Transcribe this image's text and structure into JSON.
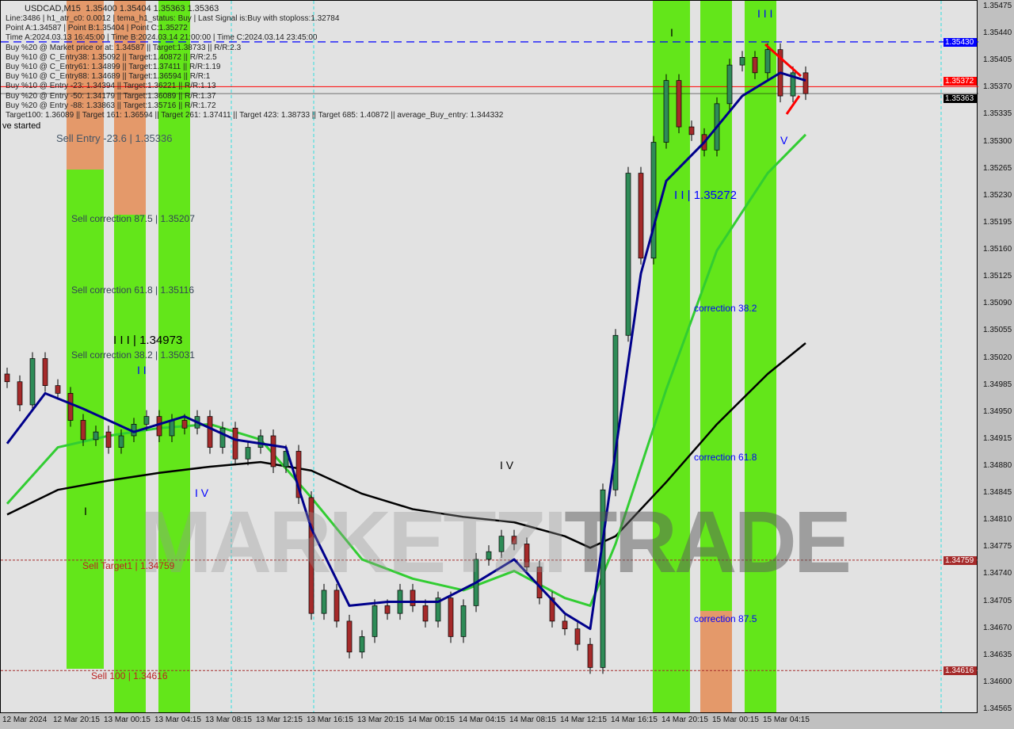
{
  "header": {
    "symbol": "USDCAD,M15",
    "ohlc": "1.35400 1.35404 1.35363 1.35363",
    "lines": [
      "Line:3486 | h1_atr_c0: 0.0012 | tema_h1_status: Buy | Last Signal is:Buy with stoploss:1.32784",
      "Point A:1.34587 | Point B:1.35404 | Point C:1.35272",
      "Time A:2024.03.13 16:45:00 | Time B:2024.03.14 21:00:00 | Time C:2024.03.14 23:45:00",
      "Buy %20 @ Market price or at: 1.34587 || Target:1.38733 || R/R:2.3",
      "Buy %10 @ C_Entry38: 1.35092 || Target:1.40872 || R/R:2.5",
      "Buy %10 @ C_Entry61: 1.34899 || Target:1.37411 || R/R:1.19",
      "Buy %10 @ C_Entry88: 1.34689 || Target:1.36594 || R/R:1",
      "Buy %10 @ Entry -23: 1.34394 || Target:1.36221 || R/R:1.13",
      "Buy %20 @ Entry -50: 1.34179 || Target:1.36089 || R/R:1.37",
      "Buy %20 @ Entry -88: 1.33863 || Target:1.35716 || R/R:1.72",
      "Target100: 1.36089 || Target 161: 1.36594 || Target 261: 1.37411 || Target 423: 1.38733 || Target 685: 1.40872 || average_Buy_entry: 1.344332",
      "ve started"
    ]
  },
  "labels": {
    "sell_entry": "Sell Entry -23.6 | 1.35336",
    "sell_corr_875": "Sell correction 87.5 | 1.35207",
    "sell_corr_618": "Sell correction 61.8 | 1.35116",
    "sell_corr_382": "Sell correction 38.2 | 1.35031",
    "wave_iii_left": "I I I | 1.34973",
    "sell_target1": "Sell Target1 | 1.34759",
    "sell_100": "Sell 100 | 1.34616",
    "wave_ii_right": "I I | 1.35272",
    "corr_382": "correction 38.2",
    "corr_618": "correction 61.8",
    "corr_875": "correction 87.5",
    "wave_iv": "I V",
    "wave_v": "V",
    "wave_i": "I",
    "wave_iii": "I I I",
    "wave_ii_left": "I I",
    "wave_iv_left": "I V",
    "wave_i_left": "I"
  },
  "watermark": "MARKETZI TRADE",
  "chart_data": {
    "type": "candlestick",
    "symbol": "USDCAD",
    "timeframe": "M15",
    "ylim": [
      1.34565,
      1.35475
    ],
    "y_ticks": [
      1.35475,
      1.3544,
      1.35405,
      1.3537,
      1.35335,
      1.353,
      1.35265,
      1.3523,
      1.35195,
      1.3516,
      1.35125,
      1.3509,
      1.35055,
      1.3502,
      1.34985,
      1.3495,
      1.34915,
      1.3488,
      1.34845,
      1.3481,
      1.34775,
      1.3474,
      1.34705,
      1.3467,
      1.34635,
      1.346,
      1.34565
    ],
    "y_tick_labels": [
      "1.35475",
      "1.35440",
      "1.35405",
      "1.35370",
      "1.35335",
      "1.35300",
      "1.35265",
      "1.35230",
      "1.35195",
      "1.35160",
      "1.35125",
      "1.35090",
      "1.35055",
      "1.35020",
      "1.34985",
      "1.34950",
      "1.34915",
      "1.34880",
      "1.34845",
      "1.34810",
      "1.34775",
      "1.34740",
      "1.34705",
      "1.34670",
      "1.34635",
      "1.34600",
      "1.34565"
    ],
    "x_tick_labels": [
      "12 Mar 2024",
      "12 Mar 20:15",
      "13 Mar 00:15",
      "13 Mar 04:15",
      "13 Mar 08:15",
      "13 Mar 12:15",
      "13 Mar 16:15",
      "13 Mar 20:15",
      "14 Mar 00:15",
      "14 Mar 04:15",
      "14 Mar 08:15",
      "14 Mar 12:15",
      "14 Mar 16:15",
      "14 Mar 20:15",
      "15 Mar 00:15",
      "15 Mar 04:15"
    ],
    "close": [
      1.3499,
      1.3496,
      1.3502,
      1.34985,
      1.34975,
      1.3494,
      1.34915,
      1.34925,
      1.34905,
      1.3492,
      1.34935,
      1.34945,
      1.3492,
      1.3494,
      1.3493,
      1.34945,
      1.34905,
      1.3493,
      1.3489,
      1.34905,
      1.3492,
      1.3488,
      1.349,
      1.3484,
      1.3469,
      1.3472,
      1.3468,
      1.3464,
      1.3466,
      1.347,
      1.3469,
      1.3472,
      1.347,
      1.3468,
      1.3471,
      1.3466,
      1.347,
      1.3476,
      1.3477,
      1.3479,
      1.3478,
      1.3475,
      1.3471,
      1.3468,
      1.3467,
      1.3465,
      1.3462,
      1.3485,
      1.3505,
      1.3526,
      1.3515,
      1.353,
      1.3538,
      1.3532,
      1.3531,
      1.3529,
      1.3535,
      1.354,
      1.3541,
      1.3539,
      1.3542,
      1.3536,
      1.3539,
      1.35363
    ],
    "ma_black": [
      [
        0,
        1.34818
      ],
      [
        4,
        1.3485
      ],
      [
        8,
        1.34862
      ],
      [
        12,
        1.34872
      ],
      [
        16,
        1.3488
      ],
      [
        20,
        1.34886
      ],
      [
        24,
        1.34875
      ],
      [
        28,
        1.34845
      ],
      [
        32,
        1.34825
      ],
      [
        36,
        1.34815
      ],
      [
        40,
        1.34808
      ],
      [
        44,
        1.3479
      ],
      [
        46,
        1.34775
      ],
      [
        48,
        1.3479
      ],
      [
        52,
        1.3486
      ],
      [
        56,
        1.34935
      ],
      [
        60,
        1.35
      ],
      [
        63,
        1.3504
      ]
    ],
    "ma_green": [
      [
        0,
        1.34832
      ],
      [
        4,
        1.34905
      ],
      [
        8,
        1.3492
      ],
      [
        12,
        1.3493
      ],
      [
        16,
        1.34935
      ],
      [
        20,
        1.34915
      ],
      [
        24,
        1.3484
      ],
      [
        28,
        1.3476
      ],
      [
        32,
        1.34735
      ],
      [
        36,
        1.3472
      ],
      [
        40,
        1.34745
      ],
      [
        44,
        1.3471
      ],
      [
        46,
        1.347
      ],
      [
        48,
        1.3478
      ],
      [
        52,
        1.3498
      ],
      [
        56,
        1.3516
      ],
      [
        60,
        1.3526
      ],
      [
        63,
        1.3531
      ]
    ],
    "ma_blue": [
      [
        0,
        1.3491
      ],
      [
        3,
        1.34975
      ],
      [
        6,
        1.34955
      ],
      [
        10,
        1.34925
      ],
      [
        14,
        1.34945
      ],
      [
        18,
        1.34915
      ],
      [
        22,
        1.34905
      ],
      [
        24,
        1.348
      ],
      [
        27,
        1.347
      ],
      [
        30,
        1.34705
      ],
      [
        34,
        1.34705
      ],
      [
        37,
        1.3473
      ],
      [
        40,
        1.3476
      ],
      [
        44,
        1.3469
      ],
      [
        46,
        1.3467
      ],
      [
        48,
        1.349
      ],
      [
        50,
        1.3513
      ],
      [
        52,
        1.3525
      ],
      [
        55,
        1.353
      ],
      [
        58,
        1.3536
      ],
      [
        61,
        1.3539
      ],
      [
        63,
        1.3538
      ]
    ],
    "levels": [
      {
        "price": 1.3543,
        "label": "1.35430",
        "color": "#0000ff",
        "style": "dashed"
      },
      {
        "price": 1.35372,
        "label": "1.35372",
        "color": "#ff0000",
        "style": "solid"
      },
      {
        "price": 1.35363,
        "label": "1.35363",
        "color": "#000000",
        "style": "solid"
      },
      {
        "price": 1.34759,
        "label": "1.34759",
        "color": "#a52a2a",
        "style": "dashed"
      },
      {
        "price": 1.34616,
        "label": "1.34616",
        "color": "#a52a2a",
        "style": "dashed"
      }
    ],
    "colors": {
      "zone_green": "#63e61a",
      "zone_orange": "#e4996a",
      "bull": "#2e8b57",
      "bear": "#a52a2a",
      "ma_blue": "#00008b",
      "ma_green": "#32cd32",
      "ma_black": "#000000"
    }
  }
}
